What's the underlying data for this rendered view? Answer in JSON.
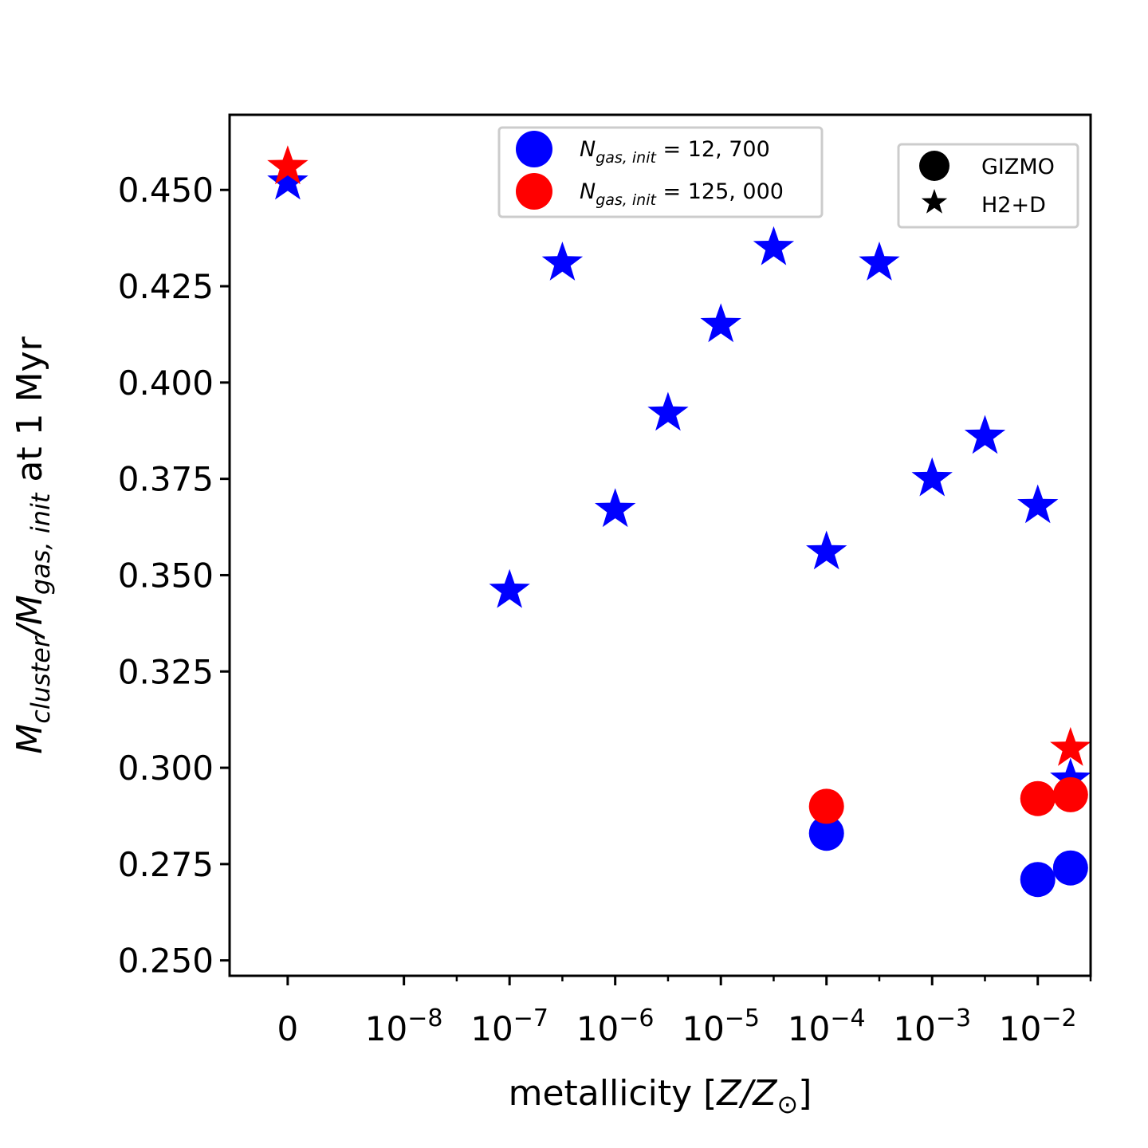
{
  "chart_data": {
    "type": "scatter",
    "xlabel": {
      "main": "metallicity [",
      "italic": "Z/Z",
      "sub": "⊙",
      "close": "]"
    },
    "ylabel": {
      "M": "M",
      "sub1": "cluster",
      "slash": "/",
      "M2": "M",
      "sub2": "gas, init",
      "tail": " at 1 Myr"
    },
    "x_ticks": [
      {
        "pos": 0,
        "base": "0",
        "exp": ""
      },
      {
        "pos": 1.1,
        "base": "10",
        "exp": "−8"
      },
      {
        "pos": 2.1,
        "base": "10",
        "exp": "−7"
      },
      {
        "pos": 3.1,
        "base": "10",
        "exp": "−6"
      },
      {
        "pos": 4.1,
        "base": "10",
        "exp": "−5"
      },
      {
        "pos": 5.1,
        "base": "10",
        "exp": "−4"
      },
      {
        "pos": 6.1,
        "base": "10",
        "exp": "−3"
      },
      {
        "pos": 7.1,
        "base": "10",
        "exp": "−2"
      }
    ],
    "x_minor_ticks": [
      1.6,
      2.6,
      3.6,
      4.6,
      5.6,
      6.6,
      7.6
    ],
    "xlim": [
      -0.55,
      7.6
    ],
    "y_ticks": [
      "0.250",
      "0.275",
      "0.300",
      "0.325",
      "0.350",
      "0.375",
      "0.400",
      "0.425",
      "0.450"
    ],
    "ylim": [
      0.246,
      0.4695
    ],
    "series": [
      {
        "color": "#0000ff",
        "marker": "star",
        "points": [
          [
            0,
            0.452
          ],
          [
            2.1,
            0.346
          ],
          [
            2.6,
            0.431
          ],
          [
            3.1,
            0.367
          ],
          [
            3.6,
            0.392
          ],
          [
            4.1,
            0.415
          ],
          [
            4.6,
            0.435
          ],
          [
            5.1,
            0.356
          ],
          [
            5.6,
            0.431
          ],
          [
            6.1,
            0.375
          ],
          [
            6.6,
            0.386
          ],
          [
            7.1,
            0.368
          ],
          [
            7.41,
            0.297
          ]
        ]
      },
      {
        "color": "#ff0000",
        "marker": "star",
        "points": [
          [
            0,
            0.456
          ],
          [
            7.41,
            0.305
          ]
        ]
      },
      {
        "color": "#0000ff",
        "marker": "circle",
        "points": [
          [
            5.1,
            0.283
          ],
          [
            7.1,
            0.271
          ],
          [
            7.41,
            0.274
          ]
        ]
      },
      {
        "color": "#ff0000",
        "marker": "circle",
        "points": [
          [
            5.1,
            0.29
          ],
          [
            7.1,
            0.292
          ],
          [
            7.41,
            0.293
          ]
        ]
      }
    ],
    "legend_resolution": {
      "placement": "top-center",
      "entries": [
        {
          "color": "#0000ff",
          "N": "N",
          "sub": "gas, init",
          "value": " = 12, 700"
        },
        {
          "color": "#ff0000",
          "N": "N",
          "sub": "gas, init",
          "value": " = 125, 000"
        }
      ]
    },
    "legend_method": {
      "placement": "top-right",
      "entries": [
        {
          "color": "#000000",
          "marker": "circle",
          "label": "GIZMO"
        },
        {
          "color": "#000000",
          "marker": "star",
          "label": "H2+D"
        }
      ]
    },
    "grid": false
  }
}
